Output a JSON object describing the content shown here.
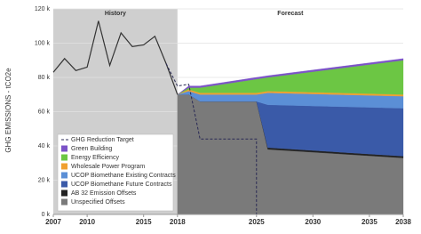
{
  "chart_data": {
    "type": "stacked-area",
    "y_label": "GHG EMISSIONS - tCO2e",
    "history_label": "History",
    "forecast_label": "Forecast",
    "history_end": 2018,
    "xlim": [
      2007,
      2038
    ],
    "xticks": [
      2007,
      2010,
      2015,
      2018,
      2025,
      2030,
      2035,
      2038
    ],
    "ylim": [
      0,
      120000
    ],
    "yticks": [
      {
        "value": 0,
        "label": "0 k"
      },
      {
        "value": 20000,
        "label": "20 k"
      },
      {
        "value": 40000,
        "label": "40 k"
      },
      {
        "value": 60000,
        "label": "60 k"
      },
      {
        "value": 80000,
        "label": "80 k"
      },
      {
        "value": 100000,
        "label": "100 k"
      },
      {
        "value": 120000,
        "label": "120 k"
      }
    ],
    "grid": true,
    "history": {
      "x": [
        2007,
        2008,
        2009,
        2010,
        2011,
        2012,
        2013,
        2014,
        2015,
        2016,
        2017,
        2018
      ],
      "values": [
        83000,
        91000,
        84000,
        86000,
        113000,
        87000,
        106000,
        98000,
        99000,
        104000,
        88000,
        70000
      ],
      "color": "#333333"
    },
    "target": {
      "name": "GHG Reduction Target",
      "x": [
        2017,
        2018,
        2019,
        2020,
        2025,
        2025,
        2038
      ],
      "values": [
        88000,
        75000,
        76000,
        44000,
        44000,
        0,
        0
      ],
      "color": "#2a2a55"
    },
    "x": [
      2018,
      2019,
      2020,
      2024,
      2025,
      2026,
      2038
    ],
    "series": [
      {
        "name": "Unspecified Offsets",
        "color": "#7a7a7a",
        "values": [
          70000,
          70000,
          66000,
          66000,
          66000,
          38000,
          33000
        ]
      },
      {
        "name": "AB 32 Emission Offsets",
        "color": "#222222",
        "values": [
          0,
          0,
          0,
          0,
          0,
          1000,
          1000
        ]
      },
      {
        "name": "UCOP Biomethane Future Contracts",
        "color": "#3a5aa8",
        "values": [
          0,
          0,
          0,
          0,
          0,
          25000,
          28000
        ]
      },
      {
        "name": "UCOP Biomethane Existing Contracts",
        "color": "#5b8fd6",
        "values": [
          0,
          2000,
          4000,
          4000,
          4000,
          7000,
          7000
        ]
      },
      {
        "name": "Wholesale Power Program",
        "color": "#f0a030",
        "values": [
          0,
          1000,
          1000,
          1000,
          1000,
          1000,
          1000
        ]
      },
      {
        "name": "Energy Efficiency",
        "color": "#6cc644",
        "values": [
          0,
          1000,
          3000,
          7000,
          8000,
          8000,
          20000
        ]
      },
      {
        "name": "Green Building",
        "color": "#7b52c7",
        "values": [
          0,
          1000,
          1000,
          1000,
          1000,
          1000,
          1000
        ]
      }
    ]
  }
}
